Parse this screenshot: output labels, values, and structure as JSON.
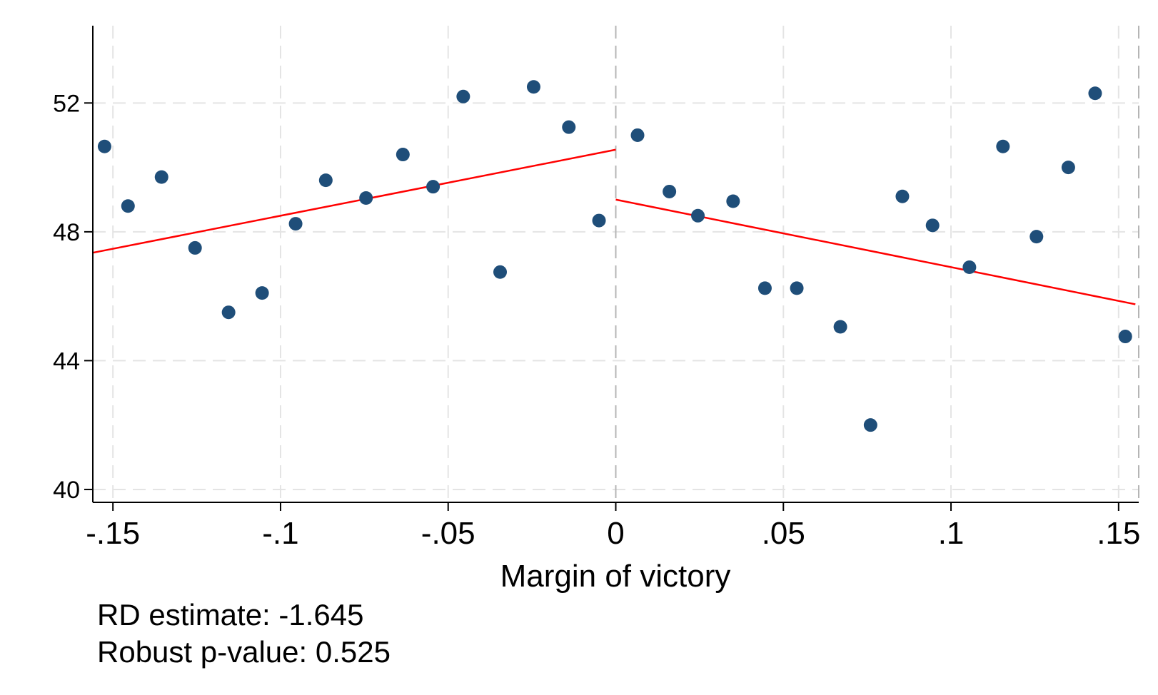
{
  "chart_data": {
    "type": "scatter",
    "title": "",
    "xlabel": "Margin of victory",
    "ylabel": "",
    "xlim": [
      -0.156,
      0.156
    ],
    "ylim": [
      39.6,
      54.4
    ],
    "x_ticks": [
      {
        "value": -0.15,
        "label": "-.15"
      },
      {
        "value": -0.1,
        "label": "-.1"
      },
      {
        "value": -0.05,
        "label": "-.05"
      },
      {
        "value": 0,
        "label": "0"
      },
      {
        "value": 0.05,
        "label": ".05"
      },
      {
        "value": 0.1,
        "label": ".1"
      },
      {
        "value": 0.15,
        "label": ".15"
      }
    ],
    "y_ticks": [
      {
        "value": 40,
        "label": "40"
      },
      {
        "value": 44,
        "label": "44"
      },
      {
        "value": 48,
        "label": "48"
      },
      {
        "value": 52,
        "label": "52"
      }
    ],
    "grid": true,
    "cutoff": 0,
    "series": [
      {
        "type": "scatter",
        "color": "#1f4e79",
        "points": [
          {
            "x": -0.1525,
            "y": 50.65
          },
          {
            "x": -0.1455,
            "y": 48.8
          },
          {
            "x": -0.1355,
            "y": 49.7
          },
          {
            "x": -0.1255,
            "y": 47.5
          },
          {
            "x": -0.1155,
            "y": 45.5
          },
          {
            "x": -0.1055,
            "y": 46.1
          },
          {
            "x": -0.0955,
            "y": 48.25
          },
          {
            "x": -0.0865,
            "y": 49.6
          },
          {
            "x": -0.0745,
            "y": 49.05
          },
          {
            "x": -0.0635,
            "y": 50.4
          },
          {
            "x": -0.0545,
            "y": 49.4
          },
          {
            "x": -0.0455,
            "y": 52.2
          },
          {
            "x": -0.0345,
            "y": 46.75
          },
          {
            "x": -0.0245,
            "y": 52.5
          },
          {
            "x": -0.014,
            "y": 51.25
          },
          {
            "x": -0.005,
            "y": 48.35
          },
          {
            "x": 0.0065,
            "y": 51.0
          },
          {
            "x": 0.016,
            "y": 49.25
          },
          {
            "x": 0.0245,
            "y": 48.5
          },
          {
            "x": 0.035,
            "y": 48.95
          },
          {
            "x": 0.0445,
            "y": 46.25
          },
          {
            "x": 0.054,
            "y": 46.25
          },
          {
            "x": 0.067,
            "y": 45.05
          },
          {
            "x": 0.076,
            "y": 42.0
          },
          {
            "x": 0.0855,
            "y": 49.1
          },
          {
            "x": 0.0945,
            "y": 48.2
          },
          {
            "x": 0.1055,
            "y": 46.9
          },
          {
            "x": 0.1155,
            "y": 50.65
          },
          {
            "x": 0.1255,
            "y": 47.85
          },
          {
            "x": 0.135,
            "y": 50.0
          },
          {
            "x": 0.143,
            "y": 52.3
          },
          {
            "x": 0.152,
            "y": 44.75
          }
        ]
      },
      {
        "type": "line",
        "color": "#ff0000",
        "points": [
          {
            "x": -0.156,
            "y": 47.35
          },
          {
            "x": 0,
            "y": 50.55
          }
        ]
      },
      {
        "type": "line",
        "color": "#ff0000",
        "points": [
          {
            "x": 0,
            "y": 49.0
          },
          {
            "x": 0.155,
            "y": 45.75
          }
        ]
      }
    ],
    "notes": [
      "RD estimate: -1.645",
      "Robust p-value: 0.525"
    ]
  }
}
